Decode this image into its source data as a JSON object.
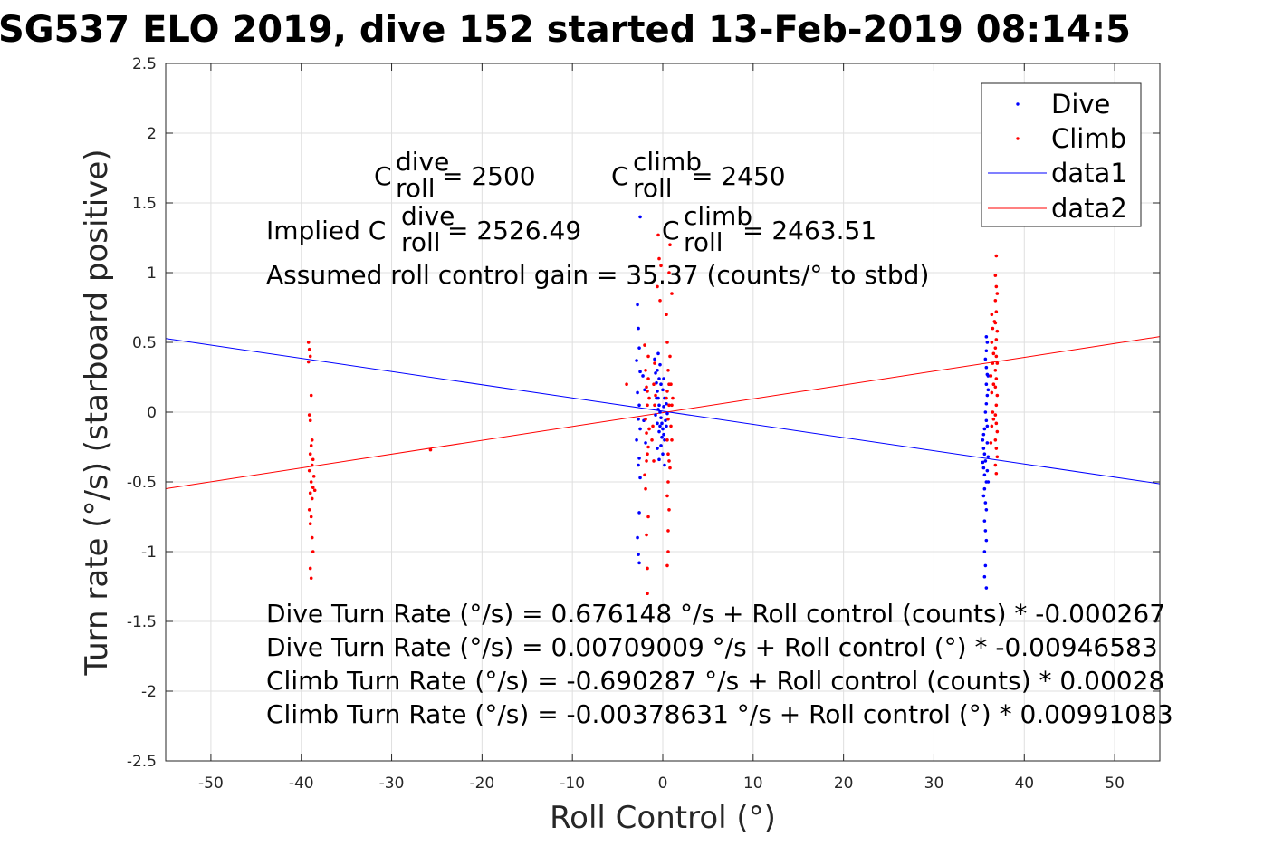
{
  "chart_data": {
    "type": "scatter",
    "title": "SG537 ELO 2019, dive 152 started 13-Feb-2019 08:14:5",
    "xlabel": "Roll Control (°)",
    "ylabel": "Turn rate (°/s) (starboard positive)",
    "xlim": [
      -55,
      55
    ],
    "ylim": [
      -2.5,
      2.5
    ],
    "x_ticks": [
      -50,
      -40,
      -30,
      -20,
      -10,
      0,
      10,
      20,
      30,
      40,
      50
    ],
    "y_ticks": [
      -2.5,
      -2,
      -1.5,
      -1,
      -0.5,
      0,
      0.5,
      1,
      1.5,
      2,
      2.5
    ],
    "grid": true,
    "legend_position": "top-right",
    "legend": [
      "Dive",
      "Climb",
      "data1",
      "data2"
    ],
    "colors": {
      "dive": "#0000ff",
      "climb": "#ff0000"
    },
    "series": [
      {
        "name": "Dive",
        "kind": "points",
        "color": "#0000ff",
        "points": [
          [
            -2.8,
            0.77
          ],
          [
            -2.7,
            0.6
          ],
          [
            -2.6,
            0.46
          ],
          [
            -2.9,
            0.37
          ],
          [
            -2.5,
            0.29
          ],
          [
            -2.8,
            0.14
          ],
          [
            -2.6,
            0.05
          ],
          [
            -2.7,
            -0.05
          ],
          [
            -2.5,
            -0.12
          ],
          [
            -2.9,
            -0.2
          ],
          [
            -2.6,
            -0.33
          ],
          [
            -2.7,
            -0.38
          ],
          [
            -2.5,
            -0.47
          ],
          [
            -2.6,
            -0.72
          ],
          [
            -2.8,
            -0.9
          ],
          [
            -2.7,
            -1.02
          ],
          [
            -2.6,
            -1.08
          ],
          [
            -2.2,
            0.26
          ],
          [
            -2.0,
            0.16
          ],
          [
            -2.1,
            -0.06
          ],
          [
            -1.9,
            -0.22
          ],
          [
            -0.8,
            0.28
          ],
          [
            -0.7,
            0.21
          ],
          [
            -0.6,
            0.15
          ],
          [
            -0.5,
            0.1
          ],
          [
            -0.4,
            0.05
          ],
          [
            -0.3,
            0.0
          ],
          [
            -0.2,
            -0.04
          ],
          [
            -0.1,
            -0.08
          ],
          [
            0.0,
            -0.12
          ],
          [
            0.1,
            -0.16
          ],
          [
            0.2,
            -0.2
          ],
          [
            -0.9,
            0.38
          ],
          [
            -0.6,
            0.3
          ],
          [
            -0.4,
            0.24
          ],
          [
            -0.2,
            0.2
          ],
          [
            0.0,
            0.16
          ],
          [
            0.2,
            0.1
          ],
          [
            0.4,
            0.06
          ],
          [
            0.5,
            -0.01
          ],
          [
            -0.8,
            -0.02
          ],
          [
            -0.6,
            -0.08
          ],
          [
            -0.4,
            -0.14
          ],
          [
            -0.2,
            -0.24
          ],
          [
            0.0,
            -0.3
          ],
          [
            0.2,
            -0.38
          ],
          [
            -0.5,
            0.42
          ],
          [
            -0.3,
            0.34
          ],
          [
            0.1,
            0.24
          ],
          [
            -0.7,
            0.1
          ],
          [
            -0.5,
            0.02
          ],
          [
            -0.3,
            -0.1
          ],
          [
            -0.1,
            -0.18
          ],
          [
            0.1,
            0.04
          ],
          [
            0.3,
            -0.06
          ],
          [
            -0.6,
            -0.26
          ],
          [
            -0.4,
            -0.34
          ],
          [
            0.4,
            -0.1
          ],
          [
            -2.5,
            1.4
          ],
          [
            35.4,
            -0.2
          ],
          [
            35.5,
            -0.26
          ],
          [
            35.6,
            -0.3
          ],
          [
            35.7,
            -0.35
          ],
          [
            35.5,
            -0.4
          ],
          [
            35.6,
            -0.45
          ],
          [
            35.8,
            -0.5
          ],
          [
            35.6,
            -0.55
          ],
          [
            35.5,
            -0.6
          ],
          [
            35.7,
            -0.65
          ],
          [
            35.8,
            -0.7
          ],
          [
            35.6,
            -0.78
          ],
          [
            35.7,
            -0.85
          ],
          [
            35.8,
            -0.92
          ],
          [
            35.6,
            -1.0
          ],
          [
            35.7,
            -1.1
          ],
          [
            35.6,
            -1.18
          ],
          [
            35.8,
            -1.26
          ],
          [
            35.9,
            -0.22
          ],
          [
            36.0,
            -0.32
          ],
          [
            35.9,
            -0.42
          ],
          [
            36.0,
            -0.5
          ],
          [
            35.4,
            -0.36
          ],
          [
            35.8,
            0.54
          ],
          [
            35.9,
            0.5
          ],
          [
            35.8,
            0.44
          ],
          [
            35.7,
            0.38
          ],
          [
            35.8,
            0.32
          ],
          [
            35.9,
            0.27
          ],
          [
            35.8,
            0.2
          ],
          [
            35.9,
            0.12
          ],
          [
            35.8,
            0.06
          ],
          [
            35.7,
            0.0
          ],
          [
            35.8,
            -0.06
          ],
          [
            35.9,
            -0.1
          ],
          [
            36.0,
            0.16
          ],
          [
            36.0,
            0.26
          ],
          [
            35.6,
            -0.12
          ],
          [
            35.5,
            -0.16
          ]
        ]
      },
      {
        "name": "Climb",
        "kind": "points",
        "color": "#ff0000",
        "points": [
          [
            -39.2,
            0.5
          ],
          [
            -39.1,
            0.45
          ],
          [
            -39.0,
            0.4
          ],
          [
            -39.2,
            0.36
          ],
          [
            -38.9,
            0.12
          ],
          [
            -39.1,
            -0.02
          ],
          [
            -39.0,
            -0.06
          ],
          [
            -38.8,
            -0.2
          ],
          [
            -38.9,
            -0.24
          ],
          [
            -39.0,
            -0.3
          ],
          [
            -38.7,
            -0.34
          ],
          [
            -38.8,
            -0.38
          ],
          [
            -39.1,
            -0.42
          ],
          [
            -38.6,
            -0.46
          ],
          [
            -38.9,
            -0.5
          ],
          [
            -38.7,
            -0.54
          ],
          [
            -39.0,
            -0.58
          ],
          [
            -38.8,
            -0.62
          ],
          [
            -39.1,
            -0.7
          ],
          [
            -38.9,
            -0.75
          ],
          [
            -39.0,
            -0.8
          ],
          [
            -38.8,
            -0.9
          ],
          [
            -38.7,
            -1.0
          ],
          [
            -39.0,
            -1.12
          ],
          [
            -38.9,
            -1.19
          ],
          [
            -38.5,
            -0.56
          ],
          [
            -25.7,
            -0.27
          ],
          [
            -4.0,
            0.2
          ],
          [
            -2.0,
            0.48
          ],
          [
            -1.9,
            0.3
          ],
          [
            -1.8,
            0.18
          ],
          [
            -1.7,
            0.05
          ],
          [
            -1.9,
            -0.05
          ],
          [
            -1.8,
            -0.15
          ],
          [
            -1.6,
            -0.25
          ],
          [
            -1.8,
            -0.35
          ],
          [
            -2.0,
            -0.45
          ],
          [
            -1.9,
            -0.55
          ],
          [
            -1.6,
            0.4
          ],
          [
            -1.5,
            0.1
          ],
          [
            -1.7,
            -0.3
          ],
          [
            -1.6,
            0.24
          ],
          [
            -1.5,
            -0.12
          ],
          [
            -1.7,
            0.15
          ],
          [
            -1.8,
            -0.88
          ],
          [
            -1.7,
            -1.12
          ],
          [
            -1.7,
            -1.3
          ],
          [
            -1.6,
            -0.75
          ],
          [
            -0.9,
            0.05
          ],
          [
            -1.1,
            -0.1
          ],
          [
            -1.0,
            0.2
          ],
          [
            -1.2,
            -0.2
          ],
          [
            -0.9,
            0.35
          ],
          [
            -1.0,
            -0.35
          ],
          [
            -0.8,
            0.12
          ],
          [
            -0.5,
            1.27
          ],
          [
            -0.4,
            1.1
          ],
          [
            -0.6,
            0.9
          ],
          [
            -0.3,
            0.8
          ],
          [
            0.4,
            0.7
          ],
          [
            0.5,
            0.5
          ],
          [
            0.6,
            0.3
          ],
          [
            0.5,
            0.15
          ],
          [
            0.7,
            0.05
          ],
          [
            0.6,
            -0.05
          ],
          [
            0.5,
            -0.2
          ],
          [
            0.7,
            -0.35
          ],
          [
            0.6,
            -0.5
          ],
          [
            0.5,
            -0.6
          ],
          [
            0.7,
            -0.7
          ],
          [
            0.6,
            -0.85
          ],
          [
            0.8,
            0.4
          ],
          [
            0.9,
            0.2
          ],
          [
            1.0,
            0.05
          ],
          [
            0.9,
            -0.1
          ],
          [
            1.0,
            -0.2
          ],
          [
            1.1,
            0.1
          ],
          [
            0.8,
            -0.4
          ],
          [
            0.7,
            1.0
          ],
          [
            0.6,
            -1.0
          ],
          [
            0.5,
            -1.1
          ],
          [
            0.7,
            0.2
          ],
          [
            0.4,
            0.1
          ],
          [
            0.6,
            -0.3
          ],
          [
            1.0,
            0.85
          ],
          [
            0.8,
            1.2
          ],
          [
            -0.2,
            1.05
          ],
          [
            36.9,
            1.12
          ],
          [
            36.8,
            0.98
          ],
          [
            36.9,
            0.9
          ],
          [
            37.0,
            0.85
          ],
          [
            36.8,
            0.8
          ],
          [
            36.9,
            0.72
          ],
          [
            36.8,
            0.64
          ],
          [
            37.0,
            0.58
          ],
          [
            36.9,
            0.52
          ],
          [
            36.8,
            0.46
          ],
          [
            36.9,
            0.4
          ],
          [
            37.0,
            0.35
          ],
          [
            36.8,
            0.3
          ],
          [
            36.9,
            0.24
          ],
          [
            36.8,
            0.18
          ],
          [
            37.0,
            0.12
          ],
          [
            36.9,
            0.05
          ],
          [
            36.8,
            -0.02
          ],
          [
            36.9,
            -0.08
          ],
          [
            37.0,
            -0.14
          ],
          [
            36.8,
            -0.2
          ],
          [
            36.9,
            -0.26
          ],
          [
            37.0,
            -0.32
          ],
          [
            36.8,
            -0.38
          ],
          [
            36.9,
            -0.44
          ],
          [
            36.4,
            0.7
          ],
          [
            36.5,
            0.6
          ],
          [
            36.4,
            0.5
          ],
          [
            36.5,
            0.35
          ],
          [
            36.3,
            0.26
          ],
          [
            36.4,
            0.14
          ],
          [
            36.5,
            0.0
          ],
          [
            36.4,
            -0.1
          ],
          [
            36.3,
            -0.22
          ],
          [
            36.6,
            0.42
          ],
          [
            36.6,
            0.2
          ],
          [
            36.6,
            -0.05
          ],
          [
            36.7,
            0.65
          ]
        ]
      },
      {
        "name": "data1",
        "kind": "line",
        "color": "#0000ff",
        "x": [
          -55,
          55
        ],
        "y": [
          0.5278,
          -0.5136
        ]
      },
      {
        "name": "data2",
        "kind": "line",
        "color": "#ff0000",
        "x": [
          -55,
          55
        ],
        "y": [
          -0.5489,
          0.5413
        ]
      }
    ],
    "annotations": {
      "c_roll_dive": {
        "base": "C",
        "sup": "dive",
        "sub": "roll",
        "rest": " = 2500"
      },
      "c_roll_climb": {
        "base": "C",
        "sup": "climb",
        "sub": "roll",
        "rest": " = 2450"
      },
      "implied_dive": {
        "prefix": "Implied C",
        "sup": "dive",
        "sub": "roll",
        "rest": " = 2526.49"
      },
      "implied_climb": {
        "base": "C",
        "sup": "climb",
        "sub": "roll",
        "rest": " = 2463.51"
      },
      "gain": "Assumed roll control gain = 35.37 (counts/° to stbd)",
      "equations": [
        "Dive Turn Rate (°/s) = 0.676148 °/s + Roll control (counts) * -0.000267",
        "Dive Turn Rate (°/s) = 0.00709009 °/s + Roll control (°) * -0.00946583",
        "Climb Turn Rate (°/s) = -0.690287 °/s + Roll control (counts) * 0.00028",
        "Climb Turn Rate (°/s) = -0.00378631 °/s + Roll control (°) * 0.00991083"
      ]
    }
  }
}
